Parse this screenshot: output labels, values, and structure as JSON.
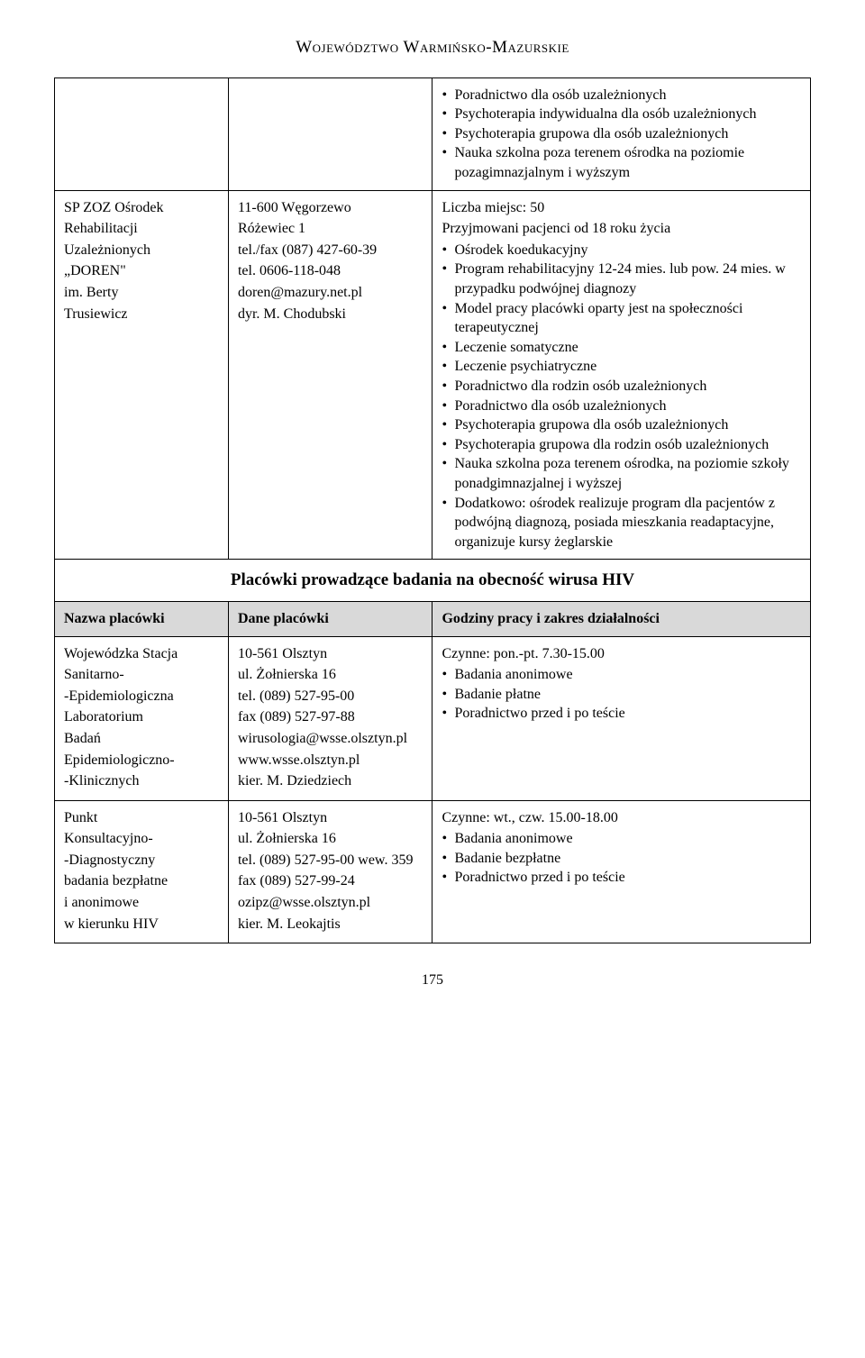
{
  "header": {
    "region": "Województwo Warmińsko-Mazurskie"
  },
  "row_top": {
    "col1": "",
    "col2": "",
    "col3_bullets": [
      "Poradnictwo dla osób uzależnionych",
      "Psychoterapia indywidualna dla osób uzależnionych",
      "Psychoterapia grupowa dla osób uzależnionych",
      "Nauka szkolna poza terenem ośrodka na poziomie pozagimnazjalnym i wyższym"
    ]
  },
  "row_doren": {
    "col1_lines": [
      "SP ZOZ Ośrodek",
      "Rehabilitacji",
      "Uzależnionych",
      "„DOREN\"",
      "im. Berty",
      "Trusiewicz"
    ],
    "col2_lines": [
      "11-600 Węgorzewo",
      "Różewiec 1",
      "tel./fax (087) 427-60-39",
      "tel. 0606-118-048",
      "doren@mazury.net.pl",
      "dyr. M. Chodubski"
    ],
    "col3_pre_lines": [
      "Liczba miejsc: 50",
      "Przyjmowani pacjenci od 18 roku życia"
    ],
    "col3_bullets": [
      "Ośrodek koedukacyjny",
      "Program rehabilitacyjny 12-24 mies. lub pow. 24 mies. w przypadku podwójnej diagnozy",
      "Model pracy placówki oparty jest na społeczności terapeutycznej",
      "Leczenie somatyczne",
      "Leczenie psychiatryczne",
      "Poradnictwo dla rodzin osób uzależnionych",
      "Poradnictwo dla osób uzależnionych",
      "Psychoterapia grupowa dla osób uzależnionych",
      "Psychoterapia grupowa dla rodzin osób uzależnionych",
      "Nauka szkolna poza terenem ośrodka, na poziomie szkoły ponadgimnazjalnej i wyższej",
      "Dodatkowo: ośrodek realizuje program dla pacjentów z podwójną diagnozą, posiada mieszkania readaptacyjne, organizuje kursy żeglarskie"
    ]
  },
  "section_heading": "Placówki prowadzące badania na obecność wirusa HIV",
  "headers": {
    "col1": "Nazwa placówki",
    "col2": "Dane placówki",
    "col3": "Godziny pracy i zakres działalności"
  },
  "row_wsse": {
    "col1_lines": [
      "Wojewódzka Stacja",
      "Sanitarno-",
      "-Epidemiologiczna",
      "Laboratorium",
      "Badań",
      "Epidemiologiczno-",
      "-Klinicznych"
    ],
    "col2_lines": [
      "10-561 Olsztyn",
      "ul. Żołnierska 16",
      "tel. (089) 527-95-00",
      "fax (089) 527-97-88",
      "wirusologia@wsse.olsztyn.pl",
      "www.wsse.olsztyn.pl",
      "kier. M. Dziedziech"
    ],
    "col3_pre_lines": [
      "Czynne: pon.-pt. 7.30-15.00"
    ],
    "col3_bullets": [
      "Badania anonimowe",
      "Badanie płatne",
      "Poradnictwo przed i po teście"
    ]
  },
  "row_punkt": {
    "col1_lines": [
      "Punkt",
      "Konsultacyjno-",
      "-Diagnostyczny",
      "badania bezpłatne",
      "i anonimowe",
      "w kierunku HIV"
    ],
    "col2_lines": [
      "10-561 Olsztyn",
      "ul. Żołnierska 16",
      "tel. (089) 527-95-00 wew. 359",
      "fax (089) 527-99-24",
      "ozipz@wsse.olsztyn.pl",
      "kier. M. Leokajtis"
    ],
    "col3_pre_lines": [
      "Czynne: wt., czw. 15.00-18.00"
    ],
    "col3_bullets": [
      "Badania anonimowe",
      "Badanie bezpłatne",
      "Poradnictwo przed i po teście"
    ]
  },
  "page_number": "175"
}
